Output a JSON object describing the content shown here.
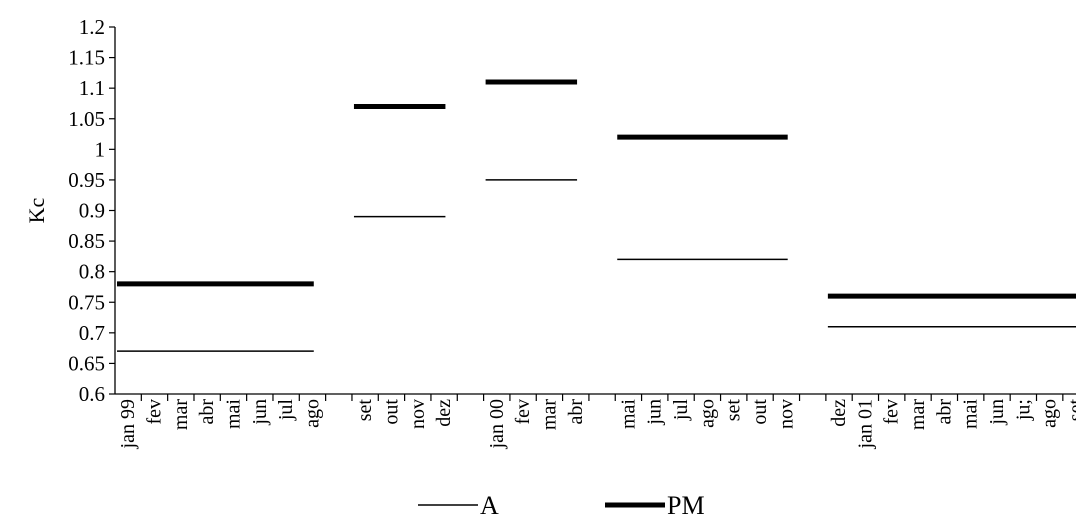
{
  "chart_data": {
    "type": "line",
    "ylabel": "Kc",
    "xlabel": "",
    "ylim": [
      0.6,
      1.2
    ],
    "y_ticks": [
      "0.6",
      "0.65",
      "0.7",
      "0.75",
      "0.8",
      "0.85",
      "0.9",
      "0.95",
      "1",
      "1.05",
      "1.1",
      "1.15",
      "1.2"
    ],
    "categories": [
      "jan 99",
      "fev",
      "mar",
      "abr",
      "mai",
      "jun",
      "jul",
      "ago",
      "",
      "set",
      "out",
      "nov",
      "dez",
      "",
      "jan 00",
      "fev",
      "mar",
      "abr",
      "",
      "mai",
      "jun",
      "jul",
      "ago",
      "set",
      "out",
      "nov",
      "",
      "dez",
      "jan 01",
      "fev",
      "mar",
      "abr",
      "mai",
      "jun",
      "ju;",
      "ago",
      "set"
    ],
    "grid": false,
    "legend_position": "bottom",
    "series": [
      {
        "name": "A",
        "color": "#000000",
        "style": "thin",
        "segments": [
          {
            "from": "jan 99",
            "to": "ago",
            "value": 0.67
          },
          {
            "from": "set",
            "to": "dez",
            "value": 0.89
          },
          {
            "from": "jan 00",
            "to": "abr",
            "value": 0.95
          },
          {
            "from": "mai",
            "to": "nov",
            "value": 0.82
          },
          {
            "from": "dez",
            "to": "set",
            "value": 0.71
          }
        ]
      },
      {
        "name": "PM",
        "color": "#000000",
        "style": "thick",
        "segments": [
          {
            "from": "jan 99",
            "to": "ago",
            "value": 0.78
          },
          {
            "from": "set",
            "to": "dez",
            "value": 1.07
          },
          {
            "from": "jan 00",
            "to": "abr",
            "value": 1.11
          },
          {
            "from": "mai",
            "to": "nov",
            "value": 1.02
          },
          {
            "from": "dez",
            "to": "set",
            "value": 0.76
          }
        ]
      }
    ]
  }
}
